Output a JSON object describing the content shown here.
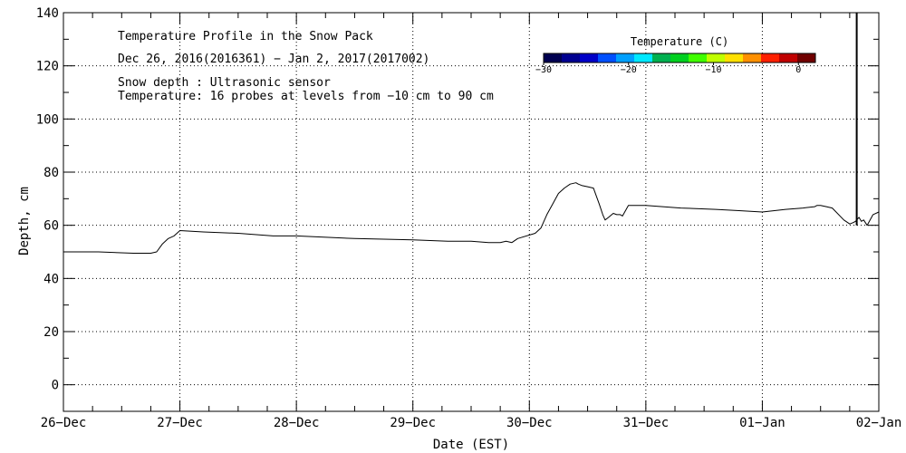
{
  "chart_data": {
    "type": "line",
    "title": "Temperature Profile in the Snow Pack",
    "subtitle": "Dec 26, 2016(2016361) − Jan  2, 2017(2017002)",
    "annotations": [
      "Snow depth : Ultrasonic sensor",
      "Temperature: 16 probes at levels from −10 cm to 90 cm"
    ],
    "xlabel": "Date (EST)",
    "ylabel": "Depth, cm",
    "xlim": [
      0,
      7
    ],
    "ylim": [
      -10,
      140
    ],
    "grid": true,
    "x_ticks": [
      {
        "value": 0,
        "label": "26−Dec"
      },
      {
        "value": 1,
        "label": "27−Dec"
      },
      {
        "value": 2,
        "label": "28−Dec"
      },
      {
        "value": 3,
        "label": "29−Dec"
      },
      {
        "value": 4,
        "label": "30−Dec"
      },
      {
        "value": 5,
        "label": "31−Dec"
      },
      {
        "value": 6,
        "label": "01−Jan"
      },
      {
        "value": 7,
        "label": "02−Jan"
      }
    ],
    "y_ticks": [
      {
        "value": 0,
        "label": "0"
      },
      {
        "value": 20,
        "label": "20"
      },
      {
        "value": 40,
        "label": "40"
      },
      {
        "value": 60,
        "label": "60"
      },
      {
        "value": 80,
        "label": "80"
      },
      {
        "value": 100,
        "label": "100"
      },
      {
        "value": 120,
        "label": "120"
      },
      {
        "value": 140,
        "label": "140"
      }
    ],
    "series": [
      {
        "color": "#000000",
        "x_unit": "days since 26-Dec 00:00 EST",
        "x": [
          0,
          0.3,
          0.6,
          0.75,
          0.8,
          0.85,
          0.9,
          0.95,
          1.0,
          1.2,
          1.5,
          1.8,
          2.0,
          2.5,
          3.0,
          3.3,
          3.5,
          3.65,
          3.75,
          3.8,
          3.85,
          3.9,
          4.05,
          4.1,
          4.15,
          4.2,
          4.25,
          4.3,
          4.35,
          4.4,
          4.42,
          4.45,
          4.5,
          4.55,
          4.6,
          4.63,
          4.65,
          4.68,
          4.72,
          4.75,
          4.78,
          4.8,
          4.85,
          5.0,
          5.3,
          5.6,
          5.8,
          6.0,
          6.2,
          6.35,
          6.45,
          6.47,
          6.5,
          6.55,
          6.6,
          6.7,
          6.75,
          6.78,
          6.8,
          6.83,
          6.85,
          6.87,
          6.9,
          6.95,
          7.0
        ],
        "y": [
          50,
          50,
          49.5,
          49.5,
          50,
          53,
          55,
          56,
          58,
          57.5,
          57,
          56,
          56,
          55,
          54.5,
          54,
          54,
          53.5,
          53.5,
          54,
          53.5,
          55,
          57,
          59,
          64,
          68,
          72,
          74,
          75.5,
          76,
          75.5,
          75,
          74.5,
          74,
          68,
          64,
          62,
          63,
          64.5,
          64,
          64,
          63.5,
          67.5,
          67.5,
          66.5,
          66,
          65.5,
          65,
          66,
          66.5,
          67,
          67.5,
          67.5,
          67,
          66.5,
          62,
          60.5,
          61,
          61.5,
          63,
          61.5,
          62,
          60,
          64,
          65
        ]
      },
      {
        "color": "#000000",
        "x": [
          6.81,
          6.81
        ],
        "y": [
          60,
          140
        ]
      }
    ],
    "colorbar": {
      "title": "Temperature (C)",
      "range": [
        -30,
        2
      ],
      "tick_values": [
        -30,
        -20,
        -10,
        0
      ],
      "tick_labels": [
        "−30",
        "−20",
        "−10",
        "0"
      ],
      "colors": [
        "#000050",
        "#000090",
        "#0000c8",
        "#0050ff",
        "#00a0ff",
        "#00e8ff",
        "#00b050",
        "#00d020",
        "#40ff00",
        "#c0ff00",
        "#ffe000",
        "#ff9000",
        "#ff2000",
        "#c00000",
        "#700000"
      ]
    }
  }
}
